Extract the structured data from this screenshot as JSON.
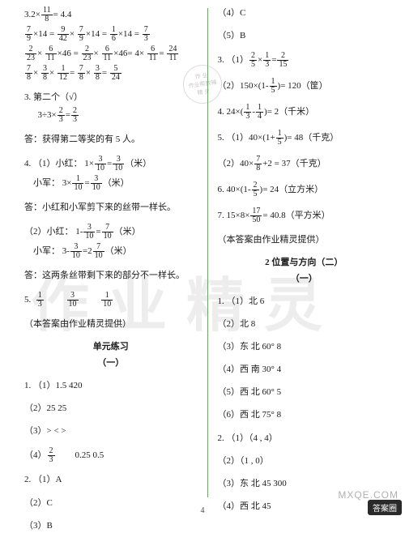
{
  "watermark": "作业精灵",
  "seal": {
    "l1": "作 业",
    "l2": "作业帮教辅",
    "l3": "精 灵"
  },
  "pagenum": "4",
  "footer_badge": "答案圈",
  "footer_site": "MXQE.COM",
  "left": {
    "l01": "3.2×",
    "l01b": "= 4.4",
    "l02a": "×14 =",
    "l02b": "×",
    "l02c": "×14 =",
    "l02d": "×14 =",
    "l03a": "×",
    "l03b": "×46 =",
    "l03c": "×",
    "l03d": "= 4×",
    "l03e": "=",
    "l04a": "×",
    "l04b": "×",
    "l04c": "=",
    "l04d": "×",
    "l04e": "=",
    "l05": "3.  第二个（√）",
    "l06": "3÷3×",
    "l07": "答：获得第二等奖的有 5 人。",
    "l08": "4. （1）小红： 1×",
    "l08b": "=",
    "l08c": "（米）",
    "l09": "小军： 3×",
    "l09b": "=",
    "l09c": "（米）",
    "l10": "答：小红和小军剪下来的丝带一样长。",
    "l11": "（2）小红： 1-",
    "l11b": "=",
    "l11c": "（米）",
    "l12": "小军： 3-",
    "l12b": "=",
    "l12c": "（米）",
    "l13": "答：这两条丝带剩下来的部分不一样长。",
    "l14": "5.",
    "l15": "（本答案由作业精灵提供）",
    "unit_title": "单元练习",
    "sub_one": "（一）",
    "u1": "1. （1）1.5      420",
    "u2": "（2）25       25",
    "u3": "（3）>       <     >",
    "u4": "（4）",
    "u4b": "0.25     0.5",
    "u5": "2. （1）A",
    "u6": "（2）C",
    "u7": "（3）B"
  },
  "right": {
    "r1": "（4）C",
    "r2": "（5）B",
    "r3a": "3. （1）",
    "r3b": "×",
    "r3c": "=",
    "r4": "（2）150×(1-",
    "r4b": ")= 120（筐）",
    "r5": "4.  24×(",
    "r5b": "-",
    "r5c": ")= 2（千米）",
    "r6": "5. （1）40×(1+",
    "r6b": ")= 48（千克）",
    "r7": "（2）40×",
    "r7b": "+2 = 37（千克）",
    "r8": "6.  40×(1-",
    "r8b": ")= 24（立方米）",
    "r9": "7.  15×8×",
    "r9b": "= 40.8（平方米）",
    "r10": "（本答案由作业精灵提供）",
    "section_title": "2   位置与方向（二）",
    "sub_one": "（一）",
    "t1": "1. （1）北     6",
    "t2": "（2）北     8",
    "t3": "（3）东   北    60°    8",
    "t4": "（4）西   南    30°    4",
    "t5": "（5）西   北    60°    5",
    "t6": "（6）西   北    75°    8",
    "t7": "2. （1）（4 , 4）",
    "t8": "（2）（1 , 0）",
    "t9": "（3）东   北    45    300",
    "t10": "（4）西   北    45"
  }
}
